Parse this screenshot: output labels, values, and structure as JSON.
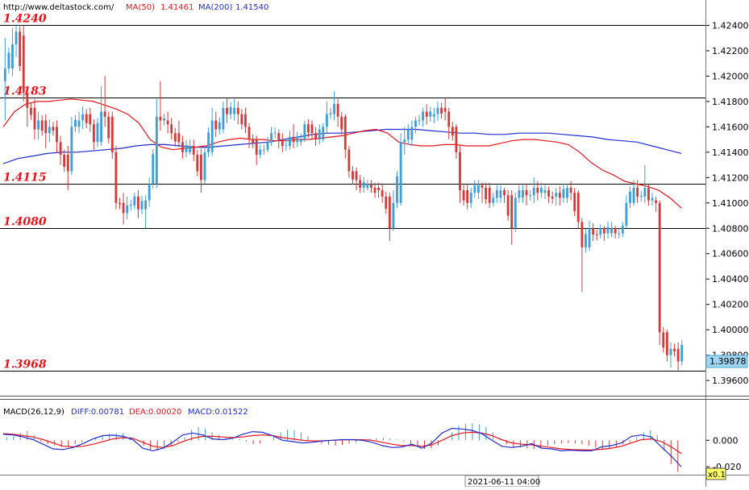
{
  "header": {
    "source": "http://www.deltastock.com/",
    "ma50_label": "MA(50)",
    "ma50_value": "1.41461",
    "ma200_label": "MA(200)",
    "ma200_value": "1.41540"
  },
  "macd_header": {
    "label": "MACD(26,12,9)",
    "diff": "DIFF:0.00781",
    "dea": "DEA:0.00020",
    "macd": "MACD:0.01522"
  },
  "colors": {
    "up": "#3d9fd8",
    "down": "#d33b3b",
    "ma50": "#e8141c",
    "ma200": "#1f2dcc",
    "level_text": "#e8141c",
    "price_tag_bg": "#9fd5f0"
  },
  "footer": {
    "date_label": "2021-06-11 04:00",
    "zoom_label": "x0.1"
  },
  "chart_data": [
    {
      "type": "candlestick",
      "title": "",
      "ylim": [
        1.3948,
        1.426
      ],
      "y_ticks": [
        "1.42400",
        "1.42200",
        "1.42000",
        "1.41800",
        "1.41600",
        "1.41400",
        "1.41200",
        "1.41000",
        "1.40800",
        "1.40600",
        "1.40400",
        "1.40200",
        "1.40000",
        "1.39800",
        "1.39600"
      ],
      "last_price": "1.39878",
      "levels": [
        {
          "value": 1.424,
          "label": "1.4240"
        },
        {
          "value": 1.4183,
          "label": "1.4183"
        },
        {
          "value": 1.4115,
          "label": "1.4115"
        },
        {
          "value": 1.408,
          "label": "1.4080"
        },
        {
          "value": 1.3968,
          "label": "1.3968"
        }
      ],
      "candle_keys": [
        [
          1.4196,
          1.4206,
          1.4165,
          1.423
        ],
        [
          1.4206,
          1.4225,
          1.42,
          1.4238
        ],
        [
          1.4225,
          1.4235,
          1.4215,
          1.4241
        ],
        [
          1.4232,
          1.4187,
          1.418,
          1.424
        ],
        [
          1.4187,
          1.4175,
          1.416,
          1.4192
        ],
        [
          1.4175,
          1.4158,
          1.415,
          1.4182
        ],
        [
          1.4158,
          1.4165,
          1.415,
          1.4172
        ],
        [
          1.4165,
          1.4155,
          1.4143,
          1.417
        ],
        [
          1.4155,
          1.416,
          1.4148,
          1.4166
        ],
        [
          1.416,
          1.4148,
          1.414,
          1.4165
        ],
        [
          1.4148,
          1.4138,
          1.413,
          1.4153
        ],
        [
          1.4138,
          1.4125,
          1.411,
          1.4145
        ],
        [
          1.4125,
          1.416,
          1.4122,
          1.4168
        ],
        [
          1.416,
          1.4165,
          1.4155,
          1.4172
        ],
        [
          1.4165,
          1.417,
          1.4158,
          1.4176
        ],
        [
          1.417,
          1.4162,
          1.4156,
          1.4175
        ],
        [
          1.4162,
          1.4148,
          1.4142,
          1.4166
        ],
        [
          1.4148,
          1.4172,
          1.4145,
          1.4192
        ],
        [
          1.4172,
          1.4168,
          1.416,
          1.42
        ],
        [
          1.4168,
          1.414,
          1.4135,
          1.4172
        ],
        [
          1.414,
          1.41,
          1.4095,
          1.4145
        ],
        [
          1.41,
          1.4092,
          1.4083,
          1.4108
        ],
        [
          1.4092,
          1.4098,
          1.4087,
          1.4105
        ],
        [
          1.4098,
          1.4105,
          1.4095,
          1.4108
        ],
        [
          1.4105,
          1.4095,
          1.4088,
          1.411
        ],
        [
          1.4095,
          1.4102,
          1.408,
          1.4106
        ],
        [
          1.4102,
          1.4115,
          1.4097,
          1.412
        ],
        [
          1.4115,
          1.4168,
          1.4112,
          1.4182
        ],
        [
          1.4168,
          1.4165,
          1.4157,
          1.4196
        ],
        [
          1.4165,
          1.4162,
          1.4155,
          1.4172
        ],
        [
          1.4162,
          1.4155,
          1.415,
          1.4167
        ],
        [
          1.4155,
          1.4148,
          1.4144,
          1.4165
        ],
        [
          1.4148,
          1.414,
          1.4135,
          1.4153
        ],
        [
          1.414,
          1.4145,
          1.4138,
          1.415
        ],
        [
          1.4145,
          1.4138,
          1.4133,
          1.415
        ],
        [
          1.4138,
          1.4118,
          1.4108,
          1.4143
        ],
        [
          1.4118,
          1.414,
          1.4115,
          1.4145
        ],
        [
          1.414,
          1.4165,
          1.4137,
          1.4175
        ],
        [
          1.4165,
          1.4158,
          1.4152,
          1.4172
        ],
        [
          1.4158,
          1.4175,
          1.4155,
          1.418
        ],
        [
          1.4175,
          1.417,
          1.4163,
          1.4183
        ],
        [
          1.417,
          1.4175,
          1.4165,
          1.4182
        ],
        [
          1.4175,
          1.417,
          1.4162,
          1.418
        ],
        [
          1.417,
          1.416,
          1.4155,
          1.4175
        ],
        [
          1.416,
          1.415,
          1.4143,
          1.4163
        ],
        [
          1.415,
          1.4138,
          1.413,
          1.4153
        ],
        [
          1.4138,
          1.4142,
          1.4135,
          1.4146
        ],
        [
          1.4142,
          1.4148,
          1.414,
          1.4152
        ],
        [
          1.4148,
          1.4155,
          1.4145,
          1.416
        ],
        [
          1.4155,
          1.415,
          1.4143,
          1.4158
        ],
        [
          1.415,
          1.4145,
          1.414,
          1.4155
        ],
        [
          1.4145,
          1.4152,
          1.4142,
          1.4157
        ],
        [
          1.4152,
          1.4148,
          1.4143,
          1.4162
        ],
        [
          1.4148,
          1.415,
          1.4145,
          1.4155
        ],
        [
          1.415,
          1.4162,
          1.4148,
          1.4165
        ],
        [
          1.4162,
          1.4155,
          1.415,
          1.4165
        ],
        [
          1.4155,
          1.415,
          1.4145,
          1.416
        ],
        [
          1.415,
          1.416,
          1.4148,
          1.4163
        ],
        [
          1.416,
          1.417,
          1.4155,
          1.418
        ],
        [
          1.417,
          1.4178,
          1.4165,
          1.4188
        ],
        [
          1.4178,
          1.4168,
          1.416,
          1.4182
        ],
        [
          1.4168,
          1.4142,
          1.4135,
          1.417
        ],
        [
          1.4142,
          1.4125,
          1.412,
          1.4145
        ],
        [
          1.4125,
          1.4118,
          1.411,
          1.4128
        ],
        [
          1.4118,
          1.4112,
          1.4108,
          1.4122
        ],
        [
          1.4112,
          1.4115,
          1.411,
          1.4118
        ],
        [
          1.4115,
          1.4112,
          1.4108,
          1.4118
        ],
        [
          1.4112,
          1.411,
          1.4104,
          1.4116
        ],
        [
          1.411,
          1.4105,
          1.41,
          1.4115
        ],
        [
          1.4105,
          1.408,
          1.407,
          1.4108
        ],
        [
          1.408,
          1.41,
          1.4078,
          1.411
        ],
        [
          1.41,
          1.4148,
          1.4098,
          1.4155
        ],
        [
          1.4148,
          1.415,
          1.4138,
          1.416
        ],
        [
          1.415,
          1.416,
          1.4145,
          1.4165
        ],
        [
          1.416,
          1.4165,
          1.4155,
          1.4168
        ],
        [
          1.4165,
          1.4172,
          1.416,
          1.4175
        ],
        [
          1.4172,
          1.4168,
          1.4162,
          1.4178
        ],
        [
          1.4168,
          1.417,
          1.4163,
          1.4175
        ],
        [
          1.417,
          1.4175,
          1.4165,
          1.418
        ],
        [
          1.4175,
          1.4172,
          1.4165,
          1.4183
        ],
        [
          1.4172,
          1.416,
          1.415,
          1.4175
        ],
        [
          1.416,
          1.414,
          1.4135,
          1.4162
        ],
        [
          1.414,
          1.411,
          1.41,
          1.4145
        ],
        [
          1.411,
          1.41,
          1.4095,
          1.4115
        ],
        [
          1.41,
          1.4108,
          1.4096,
          1.4112
        ],
        [
          1.4108,
          1.4114,
          1.4103,
          1.4118
        ],
        [
          1.4114,
          1.4112,
          1.41,
          1.4116
        ],
        [
          1.4112,
          1.41,
          1.4096,
          1.4116
        ],
        [
          1.41,
          1.4104,
          1.4097,
          1.4108
        ],
        [
          1.4104,
          1.411,
          1.41,
          1.4114
        ],
        [
          1.411,
          1.4106,
          1.41,
          1.4112
        ],
        [
          1.4106,
          1.408,
          1.4067,
          1.411
        ],
        [
          1.408,
          1.4104,
          1.4077,
          1.4108
        ],
        [
          1.4104,
          1.411,
          1.41,
          1.4114
        ],
        [
          1.411,
          1.4106,
          1.4098,
          1.4115
        ],
        [
          1.4106,
          1.4112,
          1.41,
          1.412
        ],
        [
          1.4112,
          1.4108,
          1.4102,
          1.4117
        ],
        [
          1.4108,
          1.411,
          1.4103,
          1.4114
        ],
        [
          1.411,
          1.4105,
          1.41,
          1.4113
        ],
        [
          1.4105,
          1.4108,
          1.4098,
          1.4112
        ],
        [
          1.4108,
          1.4104,
          1.4098,
          1.4113
        ],
        [
          1.4104,
          1.4112,
          1.41,
          1.4115
        ],
        [
          1.4112,
          1.4108,
          1.4102,
          1.4117
        ],
        [
          1.4108,
          1.4085,
          1.408,
          1.411
        ],
        [
          1.4085,
          1.4065,
          1.403,
          1.4088
        ],
        [
          1.4065,
          1.408,
          1.4062,
          1.4086
        ],
        [
          1.408,
          1.4075,
          1.407,
          1.4084
        ],
        [
          1.4075,
          1.408,
          1.4072,
          1.4083
        ],
        [
          1.408,
          1.4076,
          1.407,
          1.4082
        ],
        [
          1.4076,
          1.408,
          1.4073,
          1.4085
        ],
        [
          1.408,
          1.4076,
          1.4072,
          1.4082
        ],
        [
          1.4076,
          1.4082,
          1.4073,
          1.4085
        ],
        [
          1.4082,
          1.41,
          1.408,
          1.4106
        ],
        [
          1.41,
          1.4112,
          1.4098,
          1.4118
        ],
        [
          1.4112,
          1.4105,
          1.41,
          1.4118
        ],
        [
          1.4105,
          1.4112,
          1.41,
          1.413
        ],
        [
          1.4112,
          1.4102,
          1.4098,
          1.4115
        ],
        [
          1.4102,
          1.41,
          1.4093,
          1.4105
        ],
        [
          1.41,
          1.3998,
          1.3988,
          1.4102
        ],
        [
          1.3998,
          1.398,
          1.3975,
          1.4
        ],
        [
          1.398,
          1.3985,
          1.397,
          1.399
        ],
        [
          1.3985,
          1.3975,
          1.3968,
          1.399
        ],
        [
          1.3975,
          1.3988,
          1.3972,
          1.3992
        ]
      ],
      "ma50_keys": [
        1.416,
        1.4172,
        1.4178,
        1.418,
        1.418,
        1.4181,
        1.4182,
        1.4181,
        1.418,
        1.4177,
        1.4174,
        1.417,
        1.4163,
        1.415,
        1.4144,
        1.4142,
        1.4143,
        1.4144,
        1.4145,
        1.4148,
        1.415,
        1.4151,
        1.415,
        1.415,
        1.4149,
        1.4149,
        1.415,
        1.415,
        1.4151,
        1.4152,
        1.4153,
        1.4155,
        1.4157,
        1.4158,
        1.4155,
        1.4148,
        1.4146,
        1.4145,
        1.4145,
        1.4146,
        1.4146,
        1.4145,
        1.4145,
        1.4145,
        1.4147,
        1.4149,
        1.415,
        1.415,
        1.4149,
        1.4148,
        1.4146,
        1.414,
        1.4132,
        1.4126,
        1.4122,
        1.4117,
        1.4115,
        1.4113,
        1.411,
        1.4104,
        1.4096
      ],
      "ma200_keys": [
        1.4131,
        1.4135,
        1.4137,
        1.4139,
        1.414,
        1.414,
        1.4141,
        1.4142,
        1.4143,
        1.4145,
        1.4146,
        1.4146,
        1.4145,
        1.4144,
        1.4144,
        1.4145,
        1.4146,
        1.4147,
        1.4148,
        1.415,
        1.4152,
        1.4154,
        1.4155,
        1.4155,
        1.4156,
        1.4157,
        1.4158,
        1.4158,
        1.4158,
        1.4157,
        1.4156,
        1.4155,
        1.4155,
        1.4154,
        1.4154,
        1.4155,
        1.4155,
        1.4155,
        1.4154,
        1.4153,
        1.4152,
        1.415,
        1.4149,
        1.4148,
        1.4145,
        1.4142,
        1.4139
      ],
      "macd_ylim": [
        -0.026,
        0.016
      ],
      "macd_y_ticks": [
        "0.000",
        "-0.020"
      ],
      "macd_hist_keys": [
        0.0024,
        0.003,
        0.0055,
        0.007,
        0.004,
        -0.001,
        -0.003,
        -0.004,
        -0.005,
        -0.0045,
        -0.003,
        -0.0015,
        -0.0005,
        0.002,
        0.003,
        0.005,
        0.0055,
        0.005,
        0.0025,
        0.0,
        -0.004,
        -0.007,
        -0.008,
        -0.0065,
        -0.004,
        -0.001,
        0.002,
        0.008,
        0.01,
        0.009,
        0.006,
        0.004,
        0.0015,
        0.0005,
        0.001,
        -0.001,
        -0.003,
        -0.0025,
        0.0,
        0.003,
        0.006,
        0.008,
        0.0075,
        0.006,
        0.003,
        0.0,
        -0.0025,
        -0.0035,
        -0.004,
        -0.0035,
        -0.0025,
        -0.0015,
        0.0,
        0.001,
        0.0015,
        0.002,
        0.0015,
        0.0005,
        -0.001,
        -0.0035,
        -0.005,
        -0.0065,
        -0.006,
        -0.004,
        -0.0005,
        0.006,
        0.011,
        0.0125,
        0.013,
        0.012,
        0.01,
        0.006,
        0.0015,
        -0.003,
        -0.005,
        -0.0055,
        -0.006,
        -0.0065,
        -0.0055,
        -0.004,
        -0.003,
        -0.0025,
        -0.002,
        -0.0025,
        -0.003,
        -0.004,
        -0.0055,
        -0.0065,
        -0.006,
        -0.005,
        -0.003,
        -0.0015,
        0.0025,
        0.006,
        0.0075,
        0.004,
        -0.008,
        -0.018,
        -0.024
      ],
      "macd_diff_keys": [
        0.0045,
        0.004,
        0.0025,
        0.0005,
        -0.003,
        -0.0065,
        -0.007,
        -0.0055,
        -0.0025,
        0.001,
        0.0035,
        0.0038,
        0.003,
        0.0005,
        -0.006,
        -0.008,
        -0.006,
        -0.0015,
        0.004,
        0.0055,
        0.004,
        0.001,
        0.0005,
        0.0015,
        0.0045,
        0.0065,
        0.006,
        0.0035,
        0.0,
        -0.001,
        -0.002,
        -0.0015,
        -0.0005,
        0.0,
        0.0005,
        0.0005,
        0.0,
        -0.0015,
        -0.004,
        -0.0055,
        -0.005,
        -0.003,
        -0.006,
        -0.002,
        0.0055,
        0.009,
        0.0085,
        0.0075,
        0.005,
        0.0,
        -0.0045,
        -0.0055,
        -0.0045,
        -0.0025,
        -0.006,
        -0.0065,
        -0.008,
        -0.0075,
        -0.008,
        -0.008,
        -0.005,
        -0.004,
        -0.002,
        0.003,
        0.004,
        0.0025,
        -0.005,
        -0.012,
        -0.02
      ],
      "macd_dea_keys": [
        0.005,
        0.0045,
        0.0035,
        0.0025,
        0.0005,
        -0.002,
        -0.0045,
        -0.005,
        -0.0045,
        -0.003,
        -0.001,
        0.001,
        0.002,
        0.0015,
        -0.0015,
        -0.0045,
        -0.0055,
        -0.004,
        -0.001,
        0.0015,
        0.003,
        0.003,
        0.0025,
        0.002,
        0.0025,
        0.0035,
        0.004,
        0.0035,
        0.002,
        0.001,
        0.0,
        -0.0005,
        -0.0005,
        0.0,
        0.0003,
        0.0005,
        0.0004,
        0.0,
        -0.0015,
        -0.003,
        -0.004,
        -0.004,
        -0.0045,
        -0.0035,
        0.0,
        0.0035,
        0.0055,
        0.006,
        0.0055,
        0.0035,
        0.0005,
        -0.002,
        -0.003,
        -0.0035,
        -0.0045,
        -0.0055,
        -0.0065,
        -0.007,
        -0.0072,
        -0.0074,
        -0.0068,
        -0.006,
        -0.0045,
        -0.002,
        0.0005,
        0.001,
        -0.001,
        -0.005,
        -0.01
      ]
    }
  ]
}
